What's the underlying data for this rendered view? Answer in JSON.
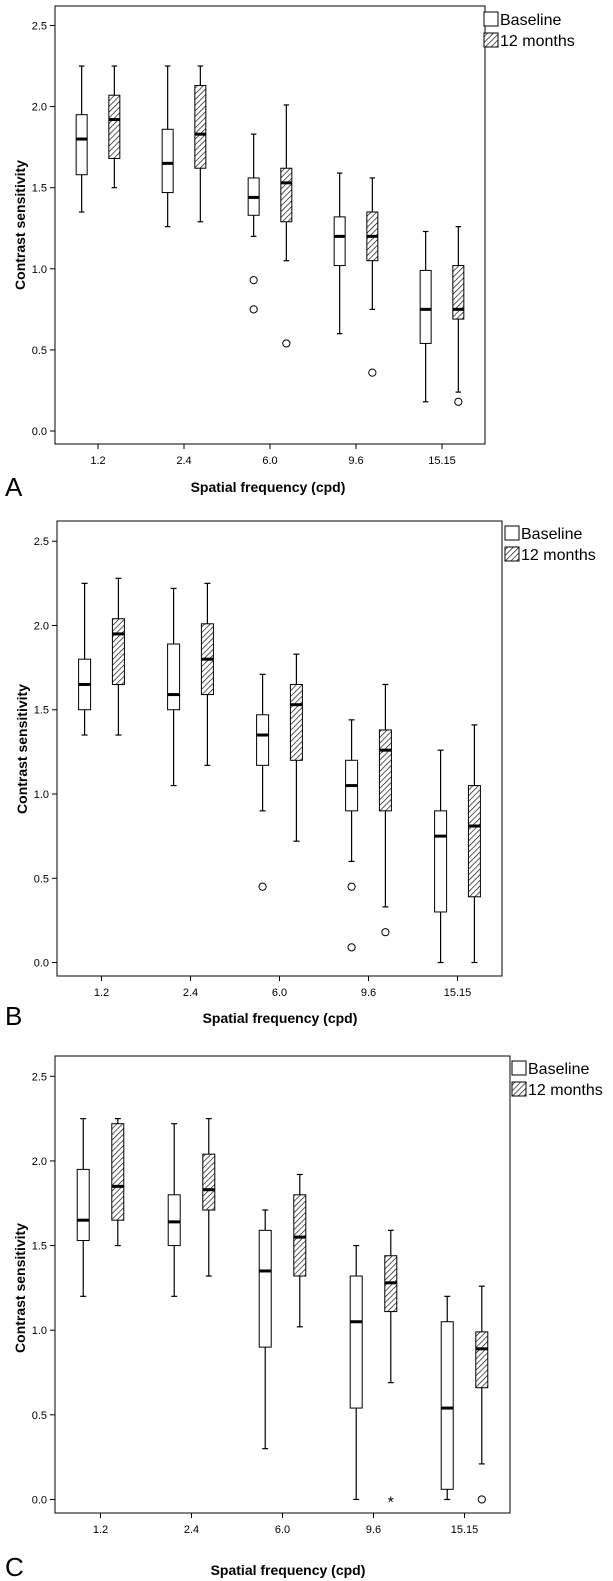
{
  "chart_data": [
    {
      "type": "boxplot",
      "panel": "A",
      "xlabel": "Spatial frequency (cpd)",
      "ylabel": "Contrast sensitivity",
      "categories": [
        "1.2",
        "2.4",
        "6.0",
        "9.6",
        "15.15"
      ],
      "yticks": [
        "0.0",
        "0.5",
        "1.0",
        "1.5",
        "2.0",
        "2.5"
      ],
      "ylim": [
        -0.08,
        2.62
      ],
      "legend": [
        "Baseline",
        "12 months"
      ],
      "legend_position": "top-right",
      "series": [
        {
          "name": "Baseline",
          "pattern": "open",
          "boxes": [
            {
              "min": 1.35,
              "q1": 1.58,
              "median": 1.8,
              "q3": 1.95,
              "max": 2.25,
              "outliers": []
            },
            {
              "min": 1.26,
              "q1": 1.47,
              "median": 1.65,
              "q3": 1.86,
              "max": 2.25,
              "outliers": []
            },
            {
              "min": 1.2,
              "q1": 1.33,
              "median": 1.44,
              "q3": 1.56,
              "max": 1.83,
              "outliers": [
                {
                  "y": 0.93,
                  "marker": "circle"
                },
                {
                  "y": 0.75,
                  "marker": "circle"
                }
              ]
            },
            {
              "min": 0.6,
              "q1": 1.02,
              "median": 1.2,
              "q3": 1.32,
              "max": 1.59,
              "outliers": []
            },
            {
              "min": 0.18,
              "q1": 0.54,
              "median": 0.75,
              "q3": 0.99,
              "max": 1.23,
              "outliers": []
            }
          ]
        },
        {
          "name": "12 months",
          "pattern": "hatched",
          "boxes": [
            {
              "min": 1.5,
              "q1": 1.68,
              "median": 1.92,
              "q3": 2.07,
              "max": 2.25,
              "outliers": []
            },
            {
              "min": 1.29,
              "q1": 1.62,
              "median": 1.83,
              "q3": 2.13,
              "max": 2.25,
              "outliers": []
            },
            {
              "min": 1.05,
              "q1": 1.29,
              "median": 1.53,
              "q3": 1.62,
              "max": 2.01,
              "outliers": [
                {
                  "y": 0.54,
                  "marker": "circle"
                }
              ]
            },
            {
              "min": 0.75,
              "q1": 1.05,
              "median": 1.2,
              "q3": 1.35,
              "max": 1.56,
              "outliers": [
                {
                  "y": 0.36,
                  "marker": "circle"
                }
              ]
            },
            {
              "min": 0.24,
              "q1": 0.69,
              "median": 0.75,
              "q3": 1.02,
              "max": 1.26,
              "outliers": [
                {
                  "y": 0.18,
                  "marker": "circle"
                }
              ]
            }
          ]
        }
      ]
    },
    {
      "type": "boxplot",
      "panel": "B",
      "xlabel": "Spatial frequency (cpd)",
      "ylabel": "Contrast sensitivity",
      "categories": [
        "1.2",
        "2.4",
        "6.0",
        "9.6",
        "15.15"
      ],
      "yticks": [
        "0.0",
        "0.5",
        "1.0",
        "1.5",
        "2.0",
        "2.5"
      ],
      "ylim": [
        -0.08,
        2.62
      ],
      "legend": [
        "Baseline",
        "12 months"
      ],
      "legend_position": "top-right",
      "series": [
        {
          "name": "Baseline",
          "pattern": "open",
          "boxes": [
            {
              "min": 1.35,
              "q1": 1.5,
              "median": 1.65,
              "q3": 1.8,
              "max": 2.25,
              "outliers": []
            },
            {
              "min": 1.05,
              "q1": 1.5,
              "median": 1.59,
              "q3": 1.89,
              "max": 2.22,
              "outliers": []
            },
            {
              "min": 0.9,
              "q1": 1.17,
              "median": 1.35,
              "q3": 1.47,
              "max": 1.71,
              "outliers": [
                {
                  "y": 0.45,
                  "marker": "circle"
                }
              ]
            },
            {
              "min": 0.6,
              "q1": 0.9,
              "median": 1.05,
              "q3": 1.2,
              "max": 1.44,
              "outliers": [
                {
                  "y": 0.45,
                  "marker": "circle"
                },
                {
                  "y": 0.09,
                  "marker": "circle"
                }
              ]
            },
            {
              "min": 0.0,
              "q1": 0.3,
              "median": 0.75,
              "q3": 0.9,
              "max": 1.26,
              "outliers": []
            }
          ]
        },
        {
          "name": "12 months",
          "pattern": "hatched",
          "boxes": [
            {
              "min": 1.35,
              "q1": 1.65,
              "median": 1.95,
              "q3": 2.04,
              "max": 2.28,
              "outliers": []
            },
            {
              "min": 1.17,
              "q1": 1.59,
              "median": 1.8,
              "q3": 2.01,
              "max": 2.25,
              "outliers": []
            },
            {
              "min": 0.72,
              "q1": 1.2,
              "median": 1.53,
              "q3": 1.65,
              "max": 1.83,
              "outliers": []
            },
            {
              "min": 0.33,
              "q1": 0.9,
              "median": 1.26,
              "q3": 1.38,
              "max": 1.65,
              "outliers": [
                {
                  "y": 0.18,
                  "marker": "circle"
                }
              ]
            },
            {
              "min": 0.0,
              "q1": 0.39,
              "median": 0.81,
              "q3": 1.05,
              "max": 1.41,
              "outliers": []
            }
          ]
        }
      ]
    },
    {
      "type": "boxplot",
      "panel": "C",
      "xlabel": "Spatial frequency (cpd)",
      "ylabel": "Contrast sensitivity",
      "categories": [
        "1.2",
        "2.4",
        "6.0",
        "9.6",
        "15.15"
      ],
      "yticks": [
        "0.0",
        "0.5",
        "1.0",
        "1.5",
        "2.0",
        "2.5"
      ],
      "ylim": [
        -0.08,
        2.62
      ],
      "legend": [
        "Baseline",
        "12 months"
      ],
      "legend_position": "top-right",
      "series": [
        {
          "name": "Baseline",
          "pattern": "open",
          "boxes": [
            {
              "min": 1.2,
              "q1": 1.53,
              "median": 1.65,
              "q3": 1.95,
              "max": 2.25,
              "outliers": []
            },
            {
              "min": 1.2,
              "q1": 1.5,
              "median": 1.64,
              "q3": 1.8,
              "max": 2.22,
              "outliers": []
            },
            {
              "min": 0.3,
              "q1": 0.9,
              "median": 1.35,
              "q3": 1.59,
              "max": 1.71,
              "outliers": []
            },
            {
              "min": 0.0,
              "q1": 0.54,
              "median": 1.05,
              "q3": 1.32,
              "max": 1.5,
              "outliers": []
            },
            {
              "min": 0.0,
              "q1": 0.06,
              "median": 0.54,
              "q3": 1.05,
              "max": 1.2,
              "outliers": []
            }
          ]
        },
        {
          "name": "12 months",
          "pattern": "hatched",
          "boxes": [
            {
              "min": 1.5,
              "q1": 1.65,
              "median": 1.85,
              "q3": 2.22,
              "max": 2.25,
              "outliers": []
            },
            {
              "min": 1.32,
              "q1": 1.71,
              "median": 1.83,
              "q3": 2.04,
              "max": 2.25,
              "outliers": []
            },
            {
              "min": 1.02,
              "q1": 1.32,
              "median": 1.55,
              "q3": 1.8,
              "max": 1.92,
              "outliers": []
            },
            {
              "min": 0.69,
              "q1": 1.11,
              "median": 1.28,
              "q3": 1.44,
              "max": 1.59,
              "outliers": [
                {
                  "y": 0.0,
                  "marker": "star"
                }
              ]
            },
            {
              "min": 0.21,
              "q1": 0.66,
              "median": 0.89,
              "q3": 0.99,
              "max": 1.26,
              "outliers": [
                {
                  "y": 0.0,
                  "marker": "circle"
                }
              ]
            }
          ]
        }
      ]
    }
  ]
}
